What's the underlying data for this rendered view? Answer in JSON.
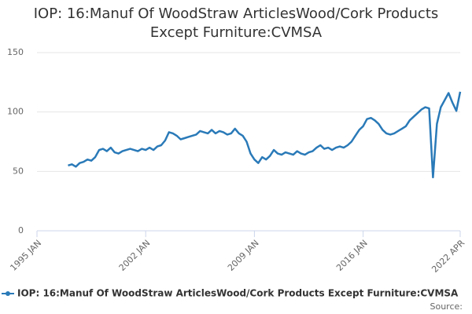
{
  "chart_data": {
    "type": "line",
    "title": "IOP: 16:Manuf Of WoodStraw ArticlesWood/Cork Products Except Furniture:CVMSA",
    "source": "Source:",
    "x": [
      "1997-01",
      "1997-04",
      "1997-07",
      "1997-10",
      "1998-01",
      "1998-04",
      "1998-07",
      "1998-10",
      "1999-01",
      "1999-04",
      "1999-07",
      "1999-10",
      "2000-01",
      "2000-04",
      "2000-07",
      "2000-10",
      "2001-01",
      "2001-04",
      "2001-07",
      "2001-10",
      "2002-01",
      "2002-04",
      "2002-07",
      "2002-10",
      "2003-01",
      "2003-04",
      "2003-07",
      "2003-10",
      "2004-01",
      "2004-04",
      "2004-07",
      "2004-10",
      "2005-01",
      "2005-04",
      "2005-07",
      "2005-10",
      "2006-01",
      "2006-04",
      "2006-07",
      "2006-10",
      "2007-01",
      "2007-04",
      "2007-07",
      "2007-10",
      "2008-01",
      "2008-04",
      "2008-07",
      "2008-10",
      "2009-01",
      "2009-04",
      "2009-07",
      "2009-10",
      "2010-01",
      "2010-04",
      "2010-07",
      "2010-10",
      "2011-01",
      "2011-04",
      "2011-07",
      "2011-10",
      "2012-01",
      "2012-04",
      "2012-07",
      "2012-10",
      "2013-01",
      "2013-04",
      "2013-07",
      "2013-10",
      "2014-01",
      "2014-04",
      "2014-07",
      "2014-10",
      "2015-01",
      "2015-04",
      "2015-07",
      "2015-10",
      "2016-01",
      "2016-04",
      "2016-07",
      "2016-10",
      "2017-01",
      "2017-04",
      "2017-07",
      "2017-10",
      "2018-01",
      "2018-04",
      "2018-07",
      "2018-10",
      "2019-01",
      "2019-04",
      "2019-07",
      "2019-10",
      "2020-01",
      "2020-04",
      "2020-07",
      "2020-10",
      "2021-01",
      "2021-04",
      "2021-07",
      "2021-10",
      "2022-01",
      "2022-04"
    ],
    "series": [
      {
        "name": "IOP: 16:Manuf Of WoodStraw ArticlesWood/Cork Products Except Furniture:CVMSA",
        "color": "#2a7ab8",
        "values": [
          55,
          56,
          54,
          57,
          58,
          60,
          59,
          62,
          68,
          69,
          67,
          70,
          66,
          65,
          67,
          68,
          69,
          68,
          67,
          69,
          68,
          70,
          68,
          71,
          72,
          76,
          83,
          82,
          80,
          77,
          78,
          79,
          80,
          81,
          84,
          83,
          82,
          85,
          82,
          84,
          83,
          81,
          82,
          86,
          82,
          80,
          75,
          65,
          60,
          57,
          62,
          60,
          63,
          68,
          65,
          64,
          66,
          65,
          64,
          67,
          65,
          64,
          66,
          67,
          70,
          72,
          69,
          70,
          68,
          70,
          71,
          70,
          72,
          75,
          80,
          85,
          88,
          94,
          95,
          93,
          90,
          85,
          82,
          81,
          82,
          84,
          86,
          88,
          93,
          96,
          99,
          102,
          104,
          103,
          45,
          90,
          104,
          110,
          116,
          108,
          101,
          117
        ]
      }
    ],
    "xlim": [
      "1995-01",
      "2022-04"
    ],
    "xticks": [
      {
        "value": "1995-01",
        "label": "1995 JAN"
      },
      {
        "value": "2002-01",
        "label": "2002 JAN"
      },
      {
        "value": "2009-01",
        "label": "2009 JAN"
      },
      {
        "value": "2016-01",
        "label": "2016 JAN"
      },
      {
        "value": "2022-04",
        "label": "2022 APR"
      }
    ],
    "ylim": [
      0,
      150
    ],
    "yticks": [
      0,
      50,
      100,
      150
    ],
    "grid": true
  }
}
